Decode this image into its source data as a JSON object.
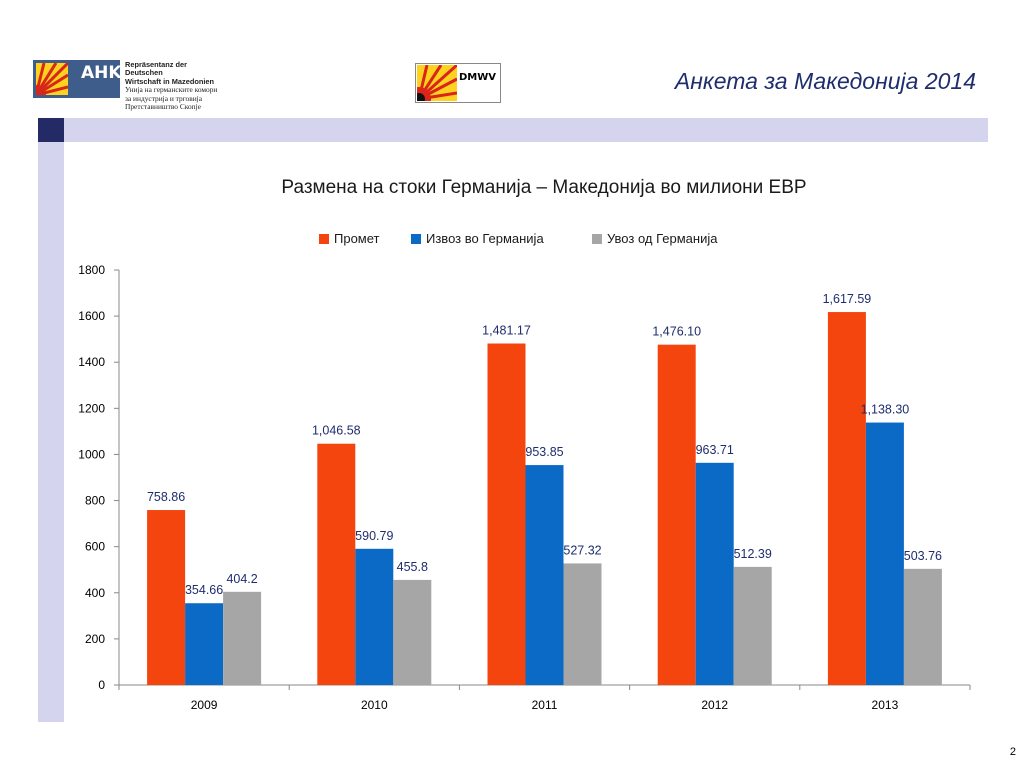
{
  "header": {
    "title": "Анкета за Македонија 2014",
    "ahk_logo": {
      "letters": "AHK",
      "lines": [
        "Repräsentanz der Deutschen",
        "Wirtschaft in Mazedonien",
        "Унија на германските комори",
        "за индустрија и трговија",
        "Претставништво Скопје"
      ]
    },
    "dmwv_logo": {
      "text": "DMWV"
    }
  },
  "colors": {
    "band": "#d4d4ef",
    "band_square": "#232a66",
    "title_blue": "#1f2d6e"
  },
  "page_number": "2",
  "chart_data": {
    "type": "bar",
    "title": "Размена на стоки Германија – Македонија во милиони ЕВР",
    "xlabel": "",
    "ylabel": "",
    "categories": [
      "2009",
      "2010",
      "2011",
      "2012",
      "2013"
    ],
    "ylim": [
      0,
      1800
    ],
    "yticks": [
      "0",
      "200",
      "400",
      "600",
      "800",
      "1000",
      "1200",
      "1400",
      "1600",
      "1800"
    ],
    "legend_position": "top",
    "grid": false,
    "series": [
      {
        "name": "Промет",
        "color": "#f4450e",
        "values": [
          758.86,
          1046.58,
          1481.17,
          1476.1,
          1617.59
        ],
        "labels": [
          "758.86",
          "1,046.58",
          "1,481.17",
          "1,476.10",
          "1,617.59"
        ]
      },
      {
        "name": "Извоз во Германија",
        "color": "#0a6ac6",
        "values": [
          354.66,
          590.79,
          953.85,
          963.71,
          1138.3
        ],
        "labels": [
          "354.66",
          "590.79",
          "953.85",
          "963.71",
          "1,138.30"
        ]
      },
      {
        "name": "Увоз од Германија",
        "color": "#a6a6a6",
        "values": [
          404.2,
          455.8,
          527.32,
          512.39,
          503.76
        ],
        "labels": [
          "404.2",
          "455.8",
          "527.32",
          "512.39",
          "503.76"
        ]
      }
    ]
  }
}
